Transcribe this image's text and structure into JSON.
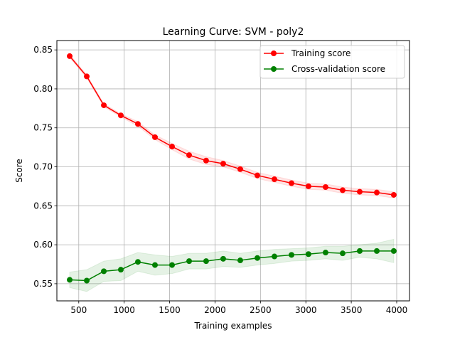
{
  "chart_data": {
    "type": "line",
    "title": "Learning Curve: SVM - poly2",
    "xlabel": "Training examples",
    "ylabel": "Score",
    "xlim": [
      259,
      4141
    ],
    "ylim": [
      0.528,
      0.862
    ],
    "x_ticks": [
      500,
      1000,
      1500,
      2000,
      2500,
      3000,
      3500,
      4000
    ],
    "y_ticks": [
      0.55,
      0.6,
      0.65,
      0.7,
      0.75,
      0.8,
      0.85
    ],
    "x_tick_labels": [
      "500",
      "1000",
      "1500",
      "2000",
      "2500",
      "3000",
      "3500",
      "4000"
    ],
    "y_tick_labels": [
      "0.55",
      "0.60",
      "0.65",
      "0.70",
      "0.75",
      "0.80",
      "0.85"
    ],
    "grid": true,
    "legend_position": "top-right",
    "x": [
      400,
      588,
      776,
      963,
      1151,
      1339,
      1527,
      1715,
      1902,
      2090,
      2278,
      2466,
      2654,
      2842,
      3029,
      3217,
      3405,
      3593,
      3781,
      3968
    ],
    "series": [
      {
        "name": "Training score",
        "color": "#ff0000",
        "band_color": "#ff0000",
        "values": [
          0.842,
          0.816,
          0.779,
          0.766,
          0.755,
          0.738,
          0.726,
          0.715,
          0.708,
          0.704,
          0.697,
          0.689,
          0.684,
          0.679,
          0.675,
          0.674,
          0.67,
          0.668,
          0.667,
          0.664
        ],
        "std": [
          0.002,
          0.002,
          0.002,
          0.002,
          0.003,
          0.003,
          0.004,
          0.005,
          0.005,
          0.004,
          0.004,
          0.004,
          0.004,
          0.004,
          0.004,
          0.004,
          0.004,
          0.004,
          0.004,
          0.004
        ]
      },
      {
        "name": "Cross-validation score",
        "color": "#008000",
        "band_color": "#008000",
        "values": [
          0.555,
          0.554,
          0.566,
          0.568,
          0.578,
          0.574,
          0.574,
          0.579,
          0.579,
          0.582,
          0.58,
          0.583,
          0.585,
          0.587,
          0.588,
          0.59,
          0.589,
          0.592,
          0.592,
          0.592
        ],
        "std": [
          0.01,
          0.014,
          0.013,
          0.014,
          0.012,
          0.013,
          0.011,
          0.01,
          0.01,
          0.01,
          0.009,
          0.009,
          0.009,
          0.008,
          0.008,
          0.008,
          0.009,
          0.008,
          0.01,
          0.015
        ]
      }
    ]
  }
}
